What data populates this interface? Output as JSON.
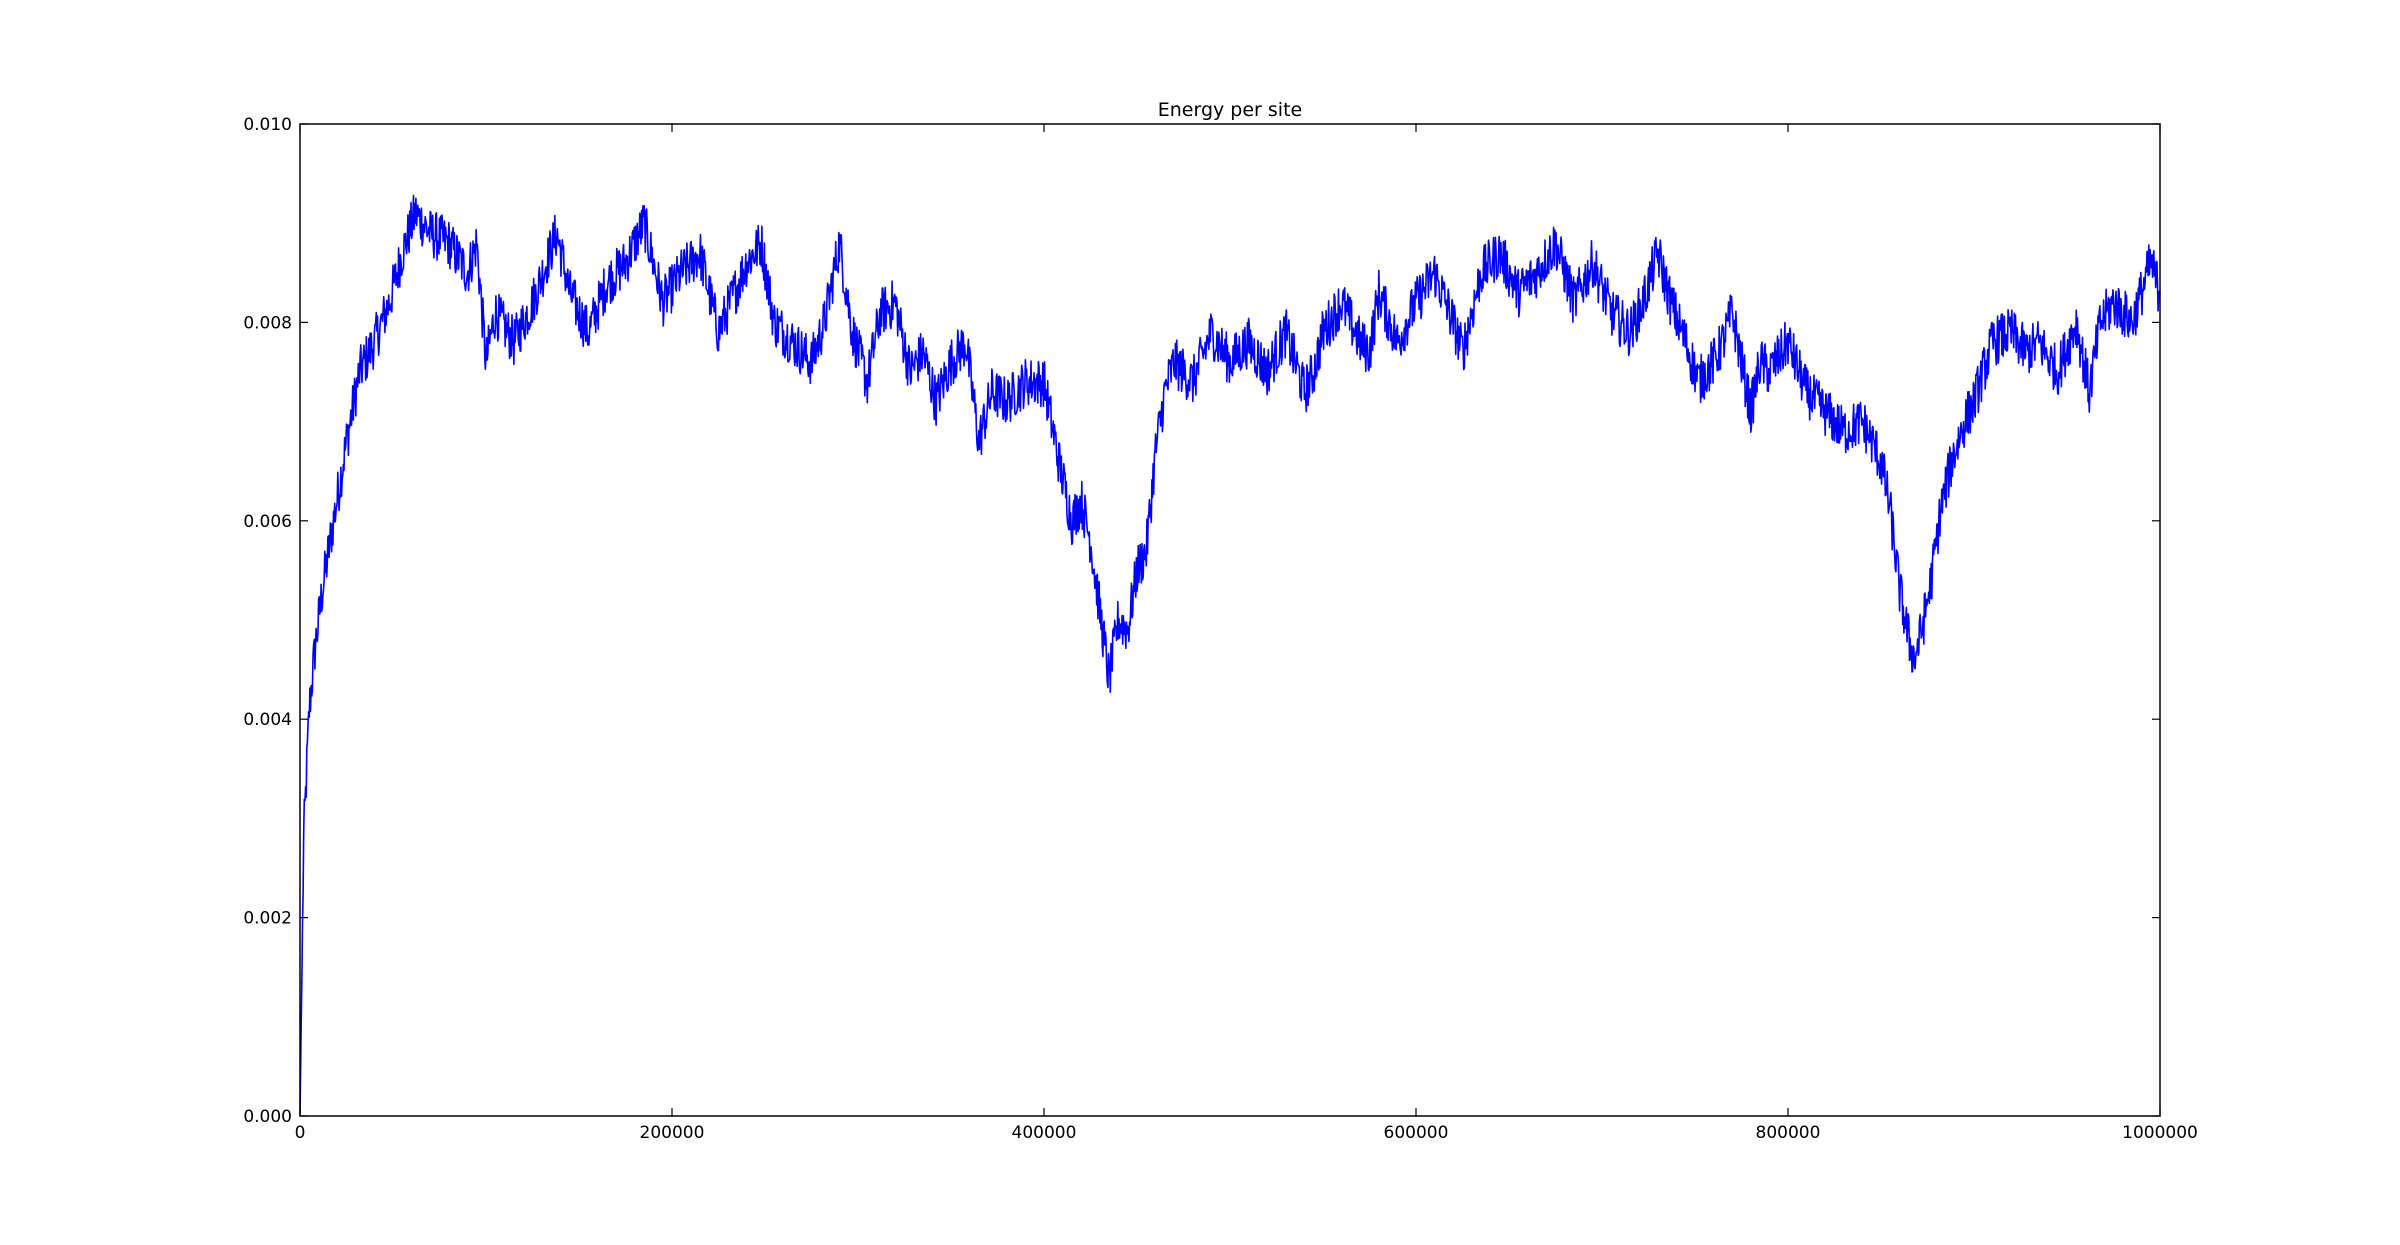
{
  "chart_data": {
    "type": "line",
    "title": "Energy per site",
    "xlabel": "",
    "ylabel": "",
    "xlim": [
      0,
      1000000
    ],
    "ylim": [
      0,
      0.01
    ],
    "grid": false,
    "x_ticks": [
      "0",
      "200000",
      "400000",
      "600000",
      "800000",
      "1000000"
    ],
    "y_ticks": [
      "0.000",
      "0.002",
      "0.004",
      "0.006",
      "0.008",
      "0.010"
    ],
    "series": [
      {
        "color": "#0000ff",
        "x": [
          0,
          2000,
          5000,
          8000,
          12000,
          18000,
          25000,
          32000,
          40000,
          48000,
          55000,
          62000,
          70000,
          80000,
          90000,
          95000,
          100000,
          105000,
          115000,
          125000,
          138000,
          145000,
          155000,
          165000,
          175000,
          185000,
          195000,
          205000,
          215000,
          225000,
          240000,
          248000,
          255000,
          265000,
          275000,
          282000,
          290000,
          297000,
          305000,
          312000,
          320000,
          328000,
          335000,
          342000,
          350000,
          358000,
          365000,
          372000,
          380000,
          390000,
          400000,
          408000,
          415000,
          420000,
          425000,
          430000,
          435000,
          440000,
          445000,
          450000,
          455000,
          460000,
          465000,
          470000,
          480000,
          490000,
          500000,
          510000,
          520000,
          530000,
          540000,
          545000,
          550000,
          560000,
          570000,
          575000,
          580000,
          590000,
          600000,
          610000,
          620000,
          625000,
          635000,
          645000,
          655000,
          665000,
          675000,
          685000,
          695000,
          705000,
          715000,
          722000,
          730000,
          737000,
          745000,
          752000,
          760000,
          765000,
          770000,
          775000,
          780000,
          785000,
          790000,
          800000,
          810000,
          820000,
          830000,
          840000,
          845000,
          850000,
          855000,
          860000,
          865000,
          868000,
          872000,
          877000,
          882000,
          888000,
          895000,
          900000,
          910000,
          920000,
          928000,
          935000,
          945000,
          955000,
          962000,
          968000,
          975000,
          985000,
          990000,
          995000,
          1000000
        ],
        "y": [
          0.0,
          0.0028,
          0.0041,
          0.0047,
          0.0053,
          0.006,
          0.0068,
          0.0075,
          0.0078,
          0.0082,
          0.0087,
          0.0091,
          0.0089,
          0.0088,
          0.0085,
          0.0088,
          0.0076,
          0.0081,
          0.0078,
          0.0082,
          0.0089,
          0.0083,
          0.0079,
          0.0084,
          0.0086,
          0.009,
          0.0082,
          0.0085,
          0.0087,
          0.0079,
          0.0086,
          0.0088,
          0.008,
          0.0078,
          0.0076,
          0.008,
          0.0088,
          0.0079,
          0.0074,
          0.0081,
          0.0082,
          0.0075,
          0.0077,
          0.0072,
          0.0076,
          0.0078,
          0.0068,
          0.0073,
          0.0072,
          0.0074,
          0.0074,
          0.0066,
          0.006,
          0.0062,
          0.0058,
          0.0051,
          0.0044,
          0.005,
          0.0049,
          0.0055,
          0.0057,
          0.0067,
          0.0073,
          0.0076,
          0.0074,
          0.0079,
          0.0076,
          0.0078,
          0.0075,
          0.0079,
          0.0073,
          0.0075,
          0.0079,
          0.0082,
          0.0078,
          0.0077,
          0.0083,
          0.0078,
          0.0082,
          0.0085,
          0.008,
          0.0077,
          0.0085,
          0.0087,
          0.0083,
          0.0085,
          0.0088,
          0.0082,
          0.0086,
          0.0081,
          0.0079,
          0.0082,
          0.0087,
          0.0082,
          0.0078,
          0.0074,
          0.0076,
          0.0078,
          0.0081,
          0.0076,
          0.0071,
          0.0076,
          0.0075,
          0.0078,
          0.0073,
          0.0071,
          0.0069,
          0.007,
          0.0068,
          0.0066,
          0.0061,
          0.0053,
          0.0048,
          0.0046,
          0.0049,
          0.0054,
          0.0061,
          0.0066,
          0.007,
          0.0072,
          0.0078,
          0.0079,
          0.0077,
          0.0078,
          0.0075,
          0.008,
          0.0073,
          0.008,
          0.0082,
          0.008,
          0.0083,
          0.0086,
          0.0083
        ]
      }
    ]
  }
}
